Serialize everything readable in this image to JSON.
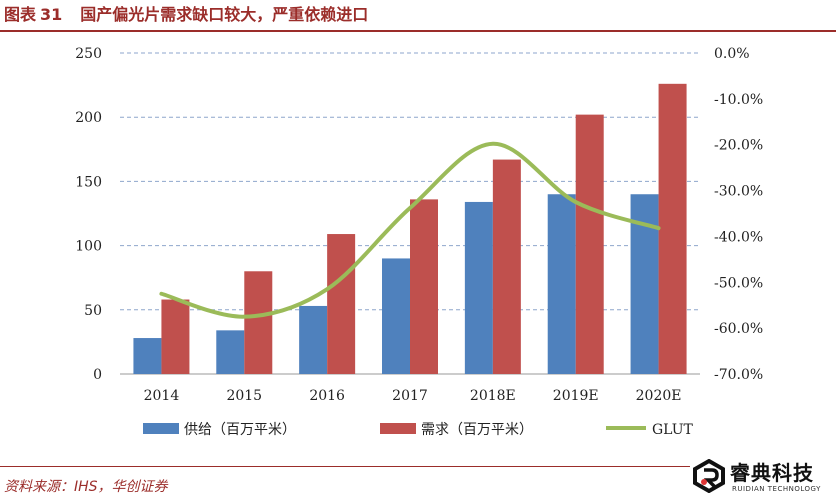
{
  "figure": {
    "label": "图表",
    "number": "31",
    "title": "国产偏光片需求缺口较大，严重依赖进口"
  },
  "source": "资料来源：IHS，华创证券",
  "watermark": {
    "name": "睿典科技",
    "subtitle": "RUIDIAN TECHNOLOGY",
    "logo_icon": "ruidian-logo-icon"
  },
  "colors": {
    "title": "#9b2d2a",
    "supply": "#4f81bd",
    "demand": "#c0504d",
    "glut": "#9bbb59"
  },
  "chart_data": {
    "type": "bar",
    "categories": [
      "2014",
      "2015",
      "2016",
      "2017",
      "2018E",
      "2019E",
      "2020E"
    ],
    "series": [
      {
        "name": "供给（百万平米）",
        "type": "bar",
        "axis": "left",
        "values": [
          28,
          34,
          53,
          90,
          134,
          140,
          140
        ]
      },
      {
        "name": "需求（百万平米）",
        "type": "bar",
        "axis": "left",
        "values": [
          58,
          80,
          109,
          136,
          167,
          202,
          226
        ]
      },
      {
        "name": "GLUT",
        "type": "line",
        "axis": "right",
        "smooth": true,
        "values": [
          -52.5,
          -57.5,
          -51.5,
          -33.8,
          -19.8,
          -32.5,
          -38.2
        ]
      }
    ],
    "y_left": {
      "min": 0,
      "max": 250,
      "ticks": [
        "0",
        "50",
        "100",
        "150",
        "200",
        "250"
      ]
    },
    "y_right": {
      "min": -70,
      "max": 0,
      "ticks": [
        "-70.0%",
        "-60.0%",
        "-50.0%",
        "-40.0%",
        "-30.0%",
        "-20.0%",
        "-10.0%",
        "0.0%"
      ]
    },
    "grid": "dashed-horizontal",
    "legend": "bottom"
  }
}
